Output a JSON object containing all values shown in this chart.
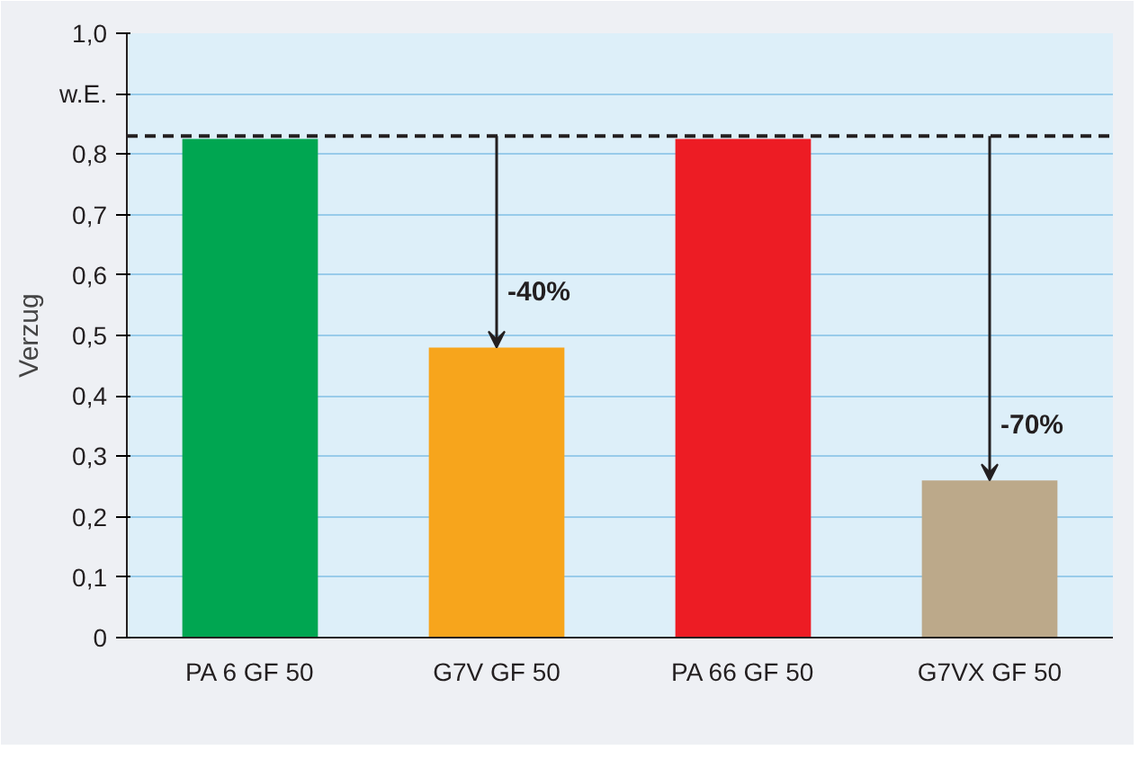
{
  "chart_data": {
    "type": "bar",
    "ylabel": "Verzug",
    "categories": [
      "PA 6 GF 50",
      "G7V GF 50",
      "PA 66 GF 50",
      "G7VX GF 50"
    ],
    "values": [
      0.825,
      0.48,
      0.825,
      0.26
    ],
    "colors": [
      "#00a651",
      "#f7a51c",
      "#ed1c24",
      "#bca98a"
    ],
    "ylim": [
      0,
      1.0
    ],
    "yticks": [
      {
        "value": 0,
        "label": "0"
      },
      {
        "value": 0.1,
        "label": "0,1"
      },
      {
        "value": 0.2,
        "label": "0,2"
      },
      {
        "value": 0.3,
        "label": "0,3"
      },
      {
        "value": 0.4,
        "label": "0,4"
      },
      {
        "value": 0.5,
        "label": "0,5"
      },
      {
        "value": 0.6,
        "label": "0,6"
      },
      {
        "value": 0.7,
        "label": "0,7"
      },
      {
        "value": 0.8,
        "label": "0,8"
      },
      {
        "value": 0.9,
        "label": "w.E."
      },
      {
        "value": 1.0,
        "label": "1,0"
      }
    ],
    "grid": "y",
    "ref_lines": [
      {
        "axis": "y",
        "value": 0.83,
        "label": null,
        "color": "#231f20",
        "line_style": "dashed"
      }
    ],
    "annotations": [
      {
        "text": "-40%",
        "x": "G7V GF 50",
        "y": 0.48
      },
      {
        "text": "-70%",
        "x": "G7VX GF 50",
        "y": 0.26
      }
    ]
  }
}
